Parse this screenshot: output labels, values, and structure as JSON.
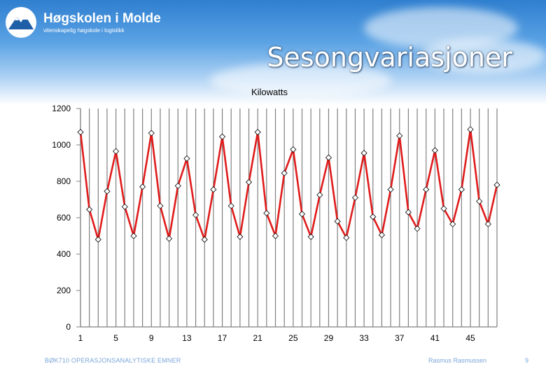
{
  "header": {
    "logo_name": "Høgskolen i Molde",
    "logo_tagline": "vitenskapelig høgskole i logistikk",
    "slide_title": "Sesongvariasjoner"
  },
  "footer": {
    "course": "BØK710 OPERASJONSANALYTISKE EMNER",
    "author": "Rasmus Rasmussen",
    "page": "9"
  },
  "colors": {
    "line": "#e01b1b",
    "marker_fill": "#ffffff",
    "grid": "#808080"
  },
  "chart_data": {
    "type": "line",
    "title": "Kilowatts",
    "xlabel": "",
    "ylabel": "",
    "ylim": [
      0,
      1200
    ],
    "xlim": [
      1,
      48
    ],
    "yticks": [
      0,
      200,
      400,
      600,
      800,
      1000,
      1200
    ],
    "xticks": [
      1,
      5,
      9,
      13,
      17,
      21,
      25,
      29,
      33,
      37,
      41,
      45
    ],
    "grid": "vertical",
    "legend": "none",
    "series": [
      {
        "x": [
          1,
          2,
          3,
          4,
          5,
          6,
          7,
          8,
          9,
          10,
          11,
          12,
          13,
          14,
          15,
          16,
          17,
          18,
          19,
          20,
          21,
          22,
          23,
          24,
          25,
          26,
          27,
          28,
          29,
          30,
          31,
          32,
          33,
          34,
          35,
          36,
          37,
          38,
          39,
          40,
          41,
          42,
          43,
          44,
          45,
          46,
          47,
          48
        ],
        "values": [
          1070,
          645,
          480,
          745,
          965,
          660,
          500,
          770,
          1065,
          665,
          485,
          775,
          925,
          615,
          480,
          755,
          1045,
          665,
          495,
          795,
          1070,
          625,
          500,
          845,
          975,
          620,
          495,
          725,
          930,
          580,
          490,
          710,
          955,
          605,
          505,
          755,
          1050,
          630,
          540,
          755,
          970,
          650,
          565,
          755,
          1085,
          690,
          565,
          780
        ]
      }
    ]
  }
}
